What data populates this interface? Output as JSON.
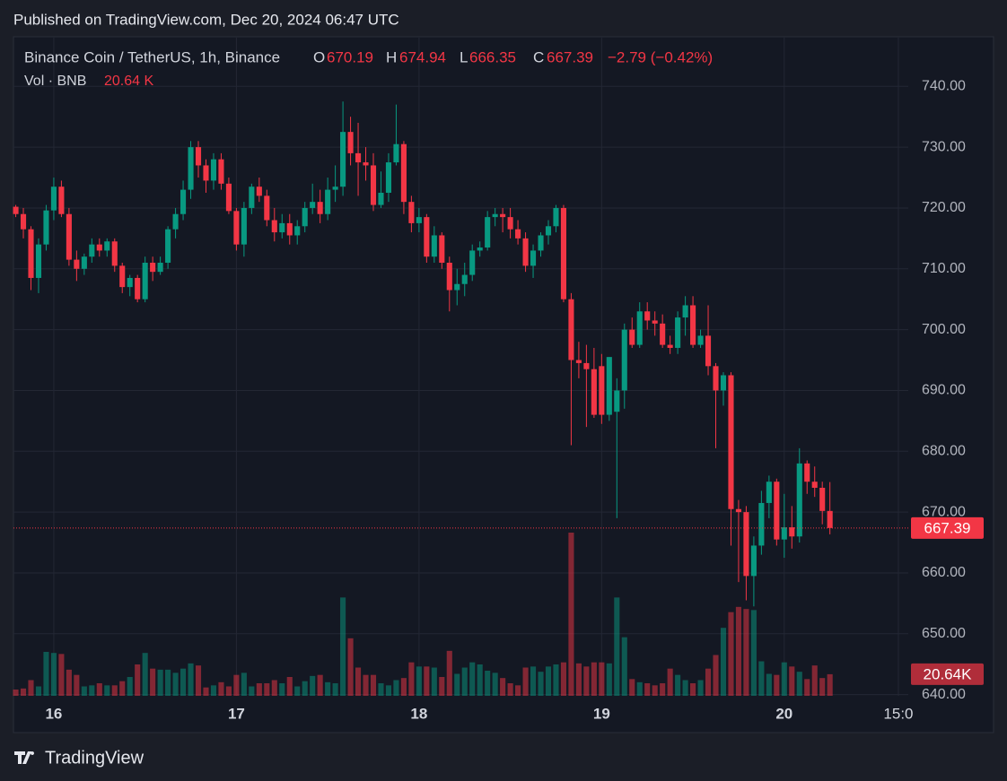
{
  "chart_data": {
    "type": "candlestick",
    "title": "Published on TradingView.com, Dec 20, 2024 06:47 UTC",
    "symbol": "Binance Coin / TetherUS, 1h, Binance",
    "ohlc_keys": [
      "O",
      "H",
      "L",
      "C"
    ],
    "change": "−2.79 (−0.42%)",
    "volume_name": "Vol · BNB",
    "volume_legend": "20.64 K",
    "volume_tag": "20.64K",
    "brand": "TradingView",
    "up_color": "#089981",
    "down_color": "#f23645",
    "grid": true,
    "x": [
      -5,
      -4,
      -3,
      -2,
      -1,
      0,
      1,
      2,
      3,
      4,
      5,
      6,
      7,
      8,
      9,
      10,
      11,
      12,
      13,
      14,
      15,
      16,
      17,
      18,
      19,
      20,
      21,
      22,
      23,
      24,
      25,
      26,
      27,
      28,
      29,
      30,
      31,
      32,
      33,
      34,
      35,
      36,
      37,
      38,
      39,
      40,
      41,
      42,
      43,
      44,
      45,
      46,
      47,
      48,
      49,
      50,
      51,
      52,
      53,
      54,
      55,
      56,
      57,
      58,
      59,
      60,
      61,
      62,
      63,
      64,
      65,
      66,
      67,
      68,
      69,
      70,
      71,
      72,
      73,
      74,
      75,
      76,
      77,
      78,
      79,
      80,
      81,
      82,
      83,
      84,
      85,
      86,
      87,
      88,
      89,
      90,
      91,
      92,
      93,
      94,
      95,
      96,
      97,
      98,
      99,
      100,
      101,
      102
    ],
    "open": [
      720.2,
      719,
      716.5,
      708.5,
      714,
      719.6,
      723.5,
      719,
      711.5,
      710,
      712,
      714,
      713,
      714.5,
      710.5,
      707,
      708.5,
      705,
      711,
      709.5,
      711,
      716.5,
      719,
      723,
      730,
      727,
      724.5,
      728,
      724,
      719.5,
      714,
      720,
      723.5,
      722,
      718,
      716,
      717.5,
      715.5,
      717,
      720,
      721,
      719,
      723,
      723.5,
      732.5,
      729,
      727.5,
      727,
      720.5,
      722.5,
      727.5,
      730.5,
      721,
      717.5,
      718.5,
      712,
      715.5,
      711,
      706.5,
      707.5,
      709,
      713,
      713.5,
      718.5,
      719,
      718.5,
      716.5,
      715,
      710.5,
      713,
      715.5,
      717,
      720,
      705,
      695,
      694.5,
      693.5,
      694,
      686,
      686.5,
      690,
      700,
      697.5,
      703,
      701.5,
      701,
      697.5,
      697,
      702,
      704,
      697.5,
      699,
      694,
      690,
      692.5,
      670.5,
      670,
      659.5,
      664.5,
      671.5,
      675,
      665.5,
      667.5,
      666,
      678,
      675,
      674,
      670.19
    ],
    "high": [
      720.5,
      720,
      717,
      715,
      720.5,
      725,
      724.5,
      720,
      713,
      712.5,
      715,
      715,
      715,
      715,
      711,
      709,
      709,
      712,
      712,
      712,
      717,
      720,
      724.5,
      731,
      731,
      728,
      729,
      729,
      725,
      720,
      721,
      724,
      725,
      723,
      720,
      719,
      719,
      718,
      721,
      724,
      723,
      725,
      727,
      737.5,
      735,
      734,
      730,
      729,
      726,
      729,
      737,
      731,
      722,
      720,
      719,
      717,
      716,
      712,
      710,
      711,
      714,
      714.5,
      719.5,
      720,
      720,
      720,
      718,
      716,
      714,
      716,
      718,
      720.5,
      720.5,
      706,
      698,
      697.5,
      697,
      696,
      695.5,
      692,
      701,
      702,
      704.5,
      704.5,
      703,
      702.5,
      699,
      703,
      705.5,
      705.5,
      700,
      704,
      694.5,
      693,
      693,
      672,
      671,
      666,
      673.5,
      676,
      675.5,
      673,
      671,
      680.5,
      678.5,
      677.5,
      675,
      674.94
    ],
    "low": [
      718.5,
      715,
      706.5,
      706,
      713,
      718,
      718.5,
      710.5,
      708,
      709,
      711,
      712,
      712,
      709.5,
      706,
      705.5,
      704.5,
      704.5,
      708,
      709,
      710,
      715,
      718,
      721.5,
      725,
      722.5,
      723,
      723,
      719,
      713,
      712,
      719,
      721,
      717,
      714.5,
      715,
      714,
      714,
      716,
      719,
      717.5,
      718,
      721,
      722,
      727,
      722,
      724.5,
      719.5,
      720,
      721,
      727,
      719,
      716,
      716,
      711,
      711,
      710,
      703,
      704,
      705.5,
      708,
      712,
      713,
      717,
      716,
      715,
      714,
      709.5,
      708.5,
      712,
      714,
      716,
      704.5,
      681,
      692,
      684,
      685.5,
      684.5,
      685,
      669,
      687,
      697,
      697,
      700,
      699,
      697,
      696,
      696,
      699,
      697,
      697,
      692.5,
      680.5,
      687.5,
      664.5,
      658.5,
      655.5,
      654.5,
      663,
      669,
      664.5,
      662.5,
      664,
      665,
      673,
      672.5,
      668,
      666.35
    ],
    "close": [
      719,
      716.5,
      708.5,
      714,
      719.6,
      723.5,
      719,
      711.5,
      710,
      712,
      714,
      713,
      714.5,
      710.5,
      707,
      708.5,
      705,
      711,
      709.5,
      711,
      716.5,
      719,
      723,
      730,
      727,
      724.5,
      728,
      724,
      719.5,
      714,
      720,
      723.5,
      722,
      718,
      716,
      717.5,
      715.5,
      717,
      720,
      721,
      719,
      723,
      723.5,
      732.5,
      729,
      727.5,
      727,
      720.5,
      722.5,
      727.5,
      730.5,
      721,
      717.5,
      718.5,
      712,
      715.5,
      711,
      706.5,
      707.5,
      709,
      713,
      713.5,
      718.5,
      719,
      718.5,
      716.5,
      715,
      710.5,
      713,
      715.5,
      717,
      720,
      705,
      695,
      694.5,
      693.5,
      686,
      686,
      695.5,
      690,
      700,
      697.5,
      703,
      701.5,
      701,
      697.5,
      697,
      702,
      704,
      697.5,
      699,
      694,
      690,
      692.5,
      670.5,
      670,
      659.5,
      664.5,
      671.5,
      675,
      665.5,
      667.5,
      666,
      678,
      675,
      674,
      670.19,
      667.39
    ],
    "volume": [
      6,
      7,
      15,
      9,
      42,
      41,
      40,
      25,
      20,
      9,
      10,
      12,
      10,
      10,
      14,
      18,
      30,
      41,
      26,
      25,
      25,
      22,
      26,
      31,
      29,
      8,
      10,
      13,
      9,
      20,
      22,
      9,
      12,
      12,
      15,
      12,
      18,
      9,
      14,
      19,
      20,
      13,
      12,
      94,
      55,
      27,
      20,
      20,
      12,
      10,
      15,
      17,
      32,
      28,
      28,
      27,
      18,
      43,
      21,
      27,
      32,
      30,
      24,
      22,
      17,
      12,
      10,
      27,
      28,
      23,
      28,
      30,
      32,
      156,
      31,
      28,
      32,
      32,
      31,
      94,
      56,
      16,
      13,
      12,
      10,
      12,
      26,
      20,
      15,
      12,
      15,
      26,
      39,
      65,
      80,
      85,
      83,
      82,
      33,
      21,
      20,
      32,
      28,
      23,
      16,
      29,
      17,
      20.64
    ],
    "xlim": [
      -5.3,
      112.3
    ],
    "xticks": [
      {
        "value": 0,
        "label": "16"
      },
      {
        "value": 24,
        "label": "17"
      },
      {
        "value": 48,
        "label": "18"
      },
      {
        "value": 72,
        "label": "19"
      },
      {
        "value": 96,
        "label": "20"
      },
      {
        "value": 111,
        "label": "15:0"
      }
    ],
    "ylim": [
      639.8,
      748
    ],
    "yticks": [
      {
        "value": 640,
        "label": "640.00"
      },
      {
        "value": 650,
        "label": "650.00"
      },
      {
        "value": 660,
        "label": "660.00"
      },
      {
        "value": 670,
        "label": "670.00"
      },
      {
        "value": 680,
        "label": "680.00"
      },
      {
        "value": 690,
        "label": "690.00"
      },
      {
        "value": 700,
        "label": "700.00"
      },
      {
        "value": 710,
        "label": "710.00"
      },
      {
        "value": 720,
        "label": "720.00"
      },
      {
        "value": 730,
        "label": "730.00"
      },
      {
        "value": 740,
        "label": "740.00"
      }
    ]
  }
}
